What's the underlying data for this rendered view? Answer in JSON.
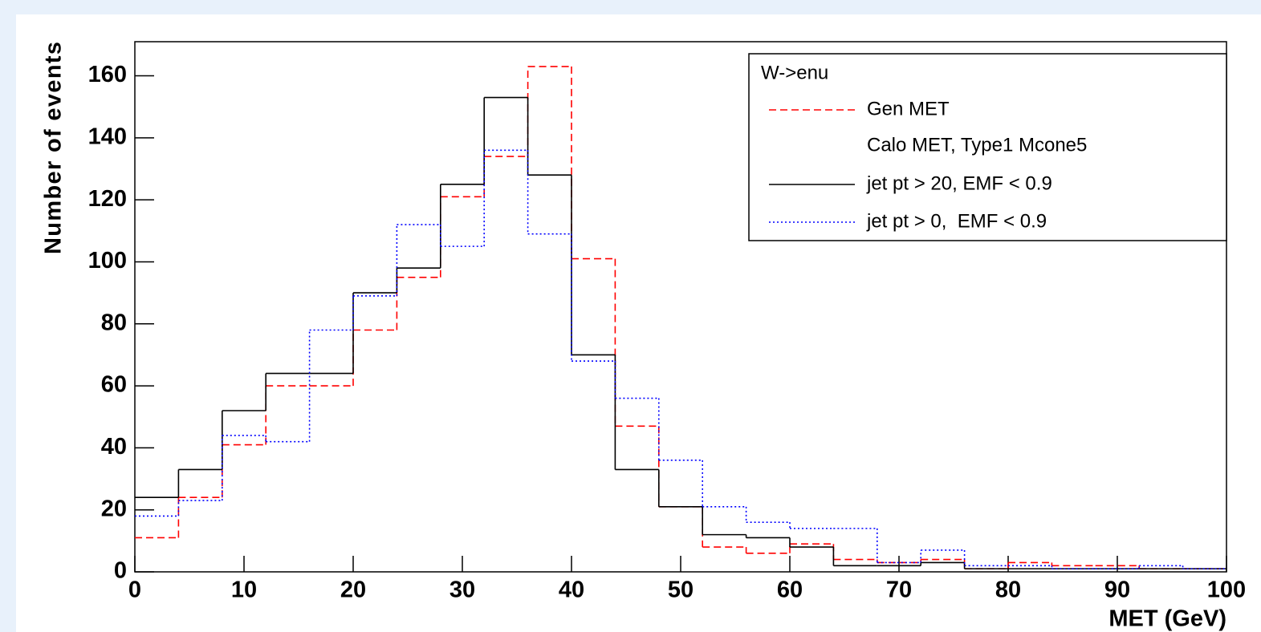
{
  "chart_data": {
    "type": "histogram",
    "x_label": "MET (GeV)",
    "y_label": "Number of events",
    "bins": [
      0,
      4,
      8,
      12,
      16,
      20,
      24,
      28,
      32,
      36,
      40,
      44,
      48,
      52,
      56,
      60,
      64,
      68,
      72,
      76,
      80,
      84,
      88,
      92,
      96,
      100
    ],
    "series": [
      {
        "name": "Gen MET",
        "color": "#ff0000",
        "style": "dashed",
        "values": [
          11,
          24,
          41,
          60,
          60,
          78,
          95,
          121,
          134,
          163,
          101,
          47,
          21,
          8,
          6,
          9,
          4,
          3,
          4,
          1,
          3,
          2,
          2,
          1,
          1
        ]
      },
      {
        "name": "jet pt > 20, EMF < 0.9",
        "color": "#000000",
        "style": "solid",
        "values": [
          24,
          33,
          52,
          64,
          64,
          90,
          98,
          125,
          153,
          128,
          70,
          33,
          21,
          12,
          11,
          8,
          2,
          2,
          3,
          1,
          1,
          1,
          1,
          1,
          1
        ]
      },
      {
        "name": "jet pt > 0,  EMF < 0.9",
        "color": "#0000ff",
        "style": "dotted",
        "values": [
          18,
          23,
          44,
          42,
          78,
          89,
          112,
          105,
          136,
          109,
          68,
          56,
          36,
          21,
          16,
          14,
          14,
          3,
          7,
          2,
          2,
          1,
          1,
          2,
          1
        ]
      }
    ],
    "legend": {
      "title": "W->enu",
      "note": "Calo MET, Type1 Mcone5",
      "position": "top-right"
    },
    "xlim": [
      0,
      100
    ],
    "xticks": [
      0,
      10,
      20,
      30,
      40,
      50,
      60,
      70,
      80,
      90,
      100
    ],
    "ylim": [
      0,
      171
    ],
    "yticks": [
      0,
      20,
      40,
      60,
      80,
      100,
      120,
      140,
      160
    ]
  }
}
